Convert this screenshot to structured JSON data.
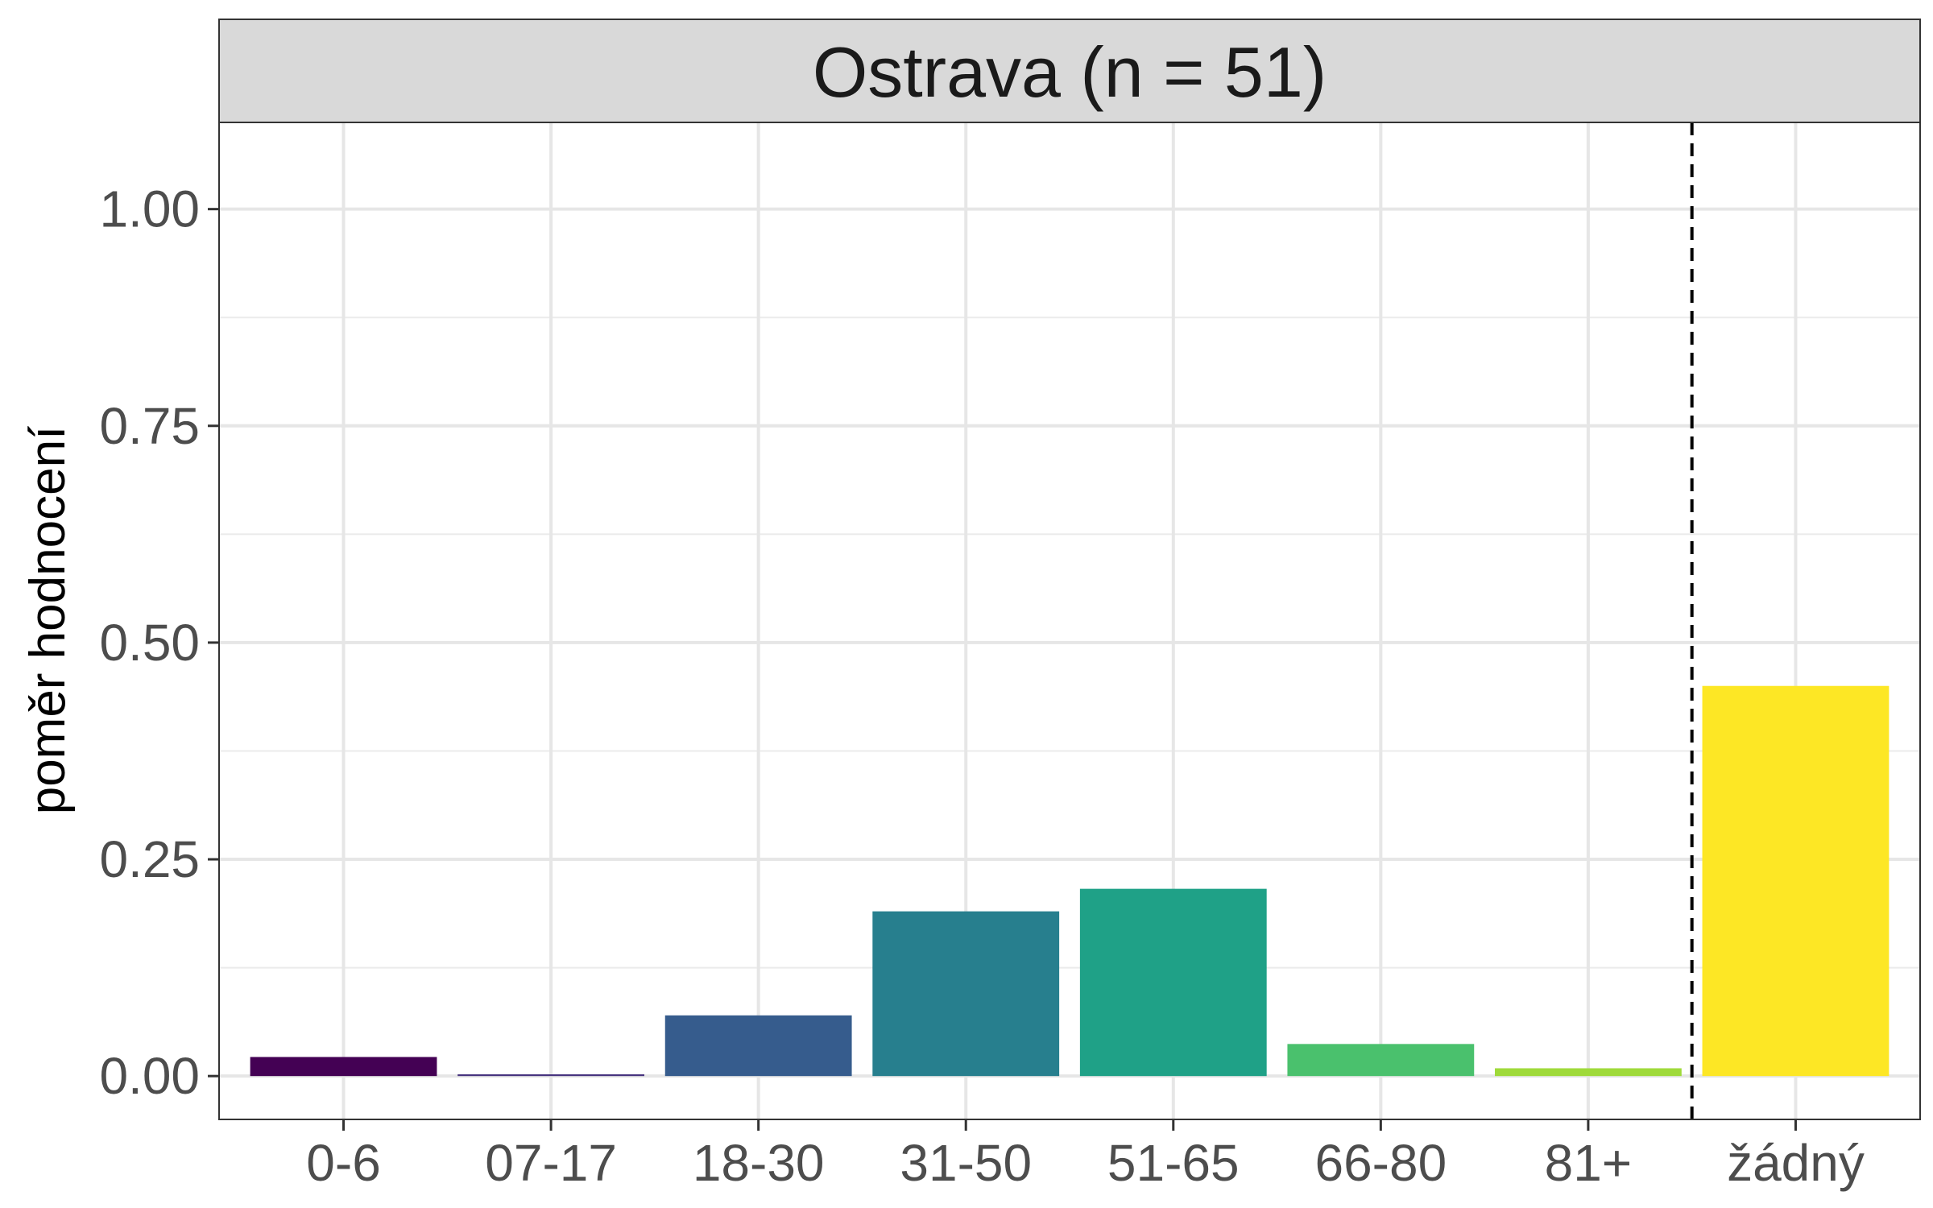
{
  "chart_data": {
    "type": "bar",
    "title": "Ostrava (n = 51)",
    "xlabel": "",
    "ylabel": "poměr hodnocení",
    "categories": [
      "0-6",
      "07-17",
      "18-30",
      "31-50",
      "51-65",
      "66-80",
      "81+",
      "žádný"
    ],
    "values": [
      0.022,
      0.002,
      0.07,
      0.19,
      0.216,
      0.037,
      0.009,
      0.45
    ],
    "colors": [
      "#440154",
      "#46337E",
      "#365C8D",
      "#277F8E",
      "#1FA187",
      "#4AC16D",
      "#9FDA3A",
      "#FDE725"
    ],
    "ylim": [
      -0.05,
      1.1
    ],
    "yticks": [
      0.0,
      0.25,
      0.5,
      0.75,
      1.0
    ],
    "ytick_labels": [
      "0.00",
      "0.25",
      "0.50",
      "0.75",
      "1.00"
    ],
    "reference_line": {
      "between": [
        "81+",
        "žádný"
      ],
      "style": "dashed"
    },
    "grid": true,
    "legend": "none"
  }
}
